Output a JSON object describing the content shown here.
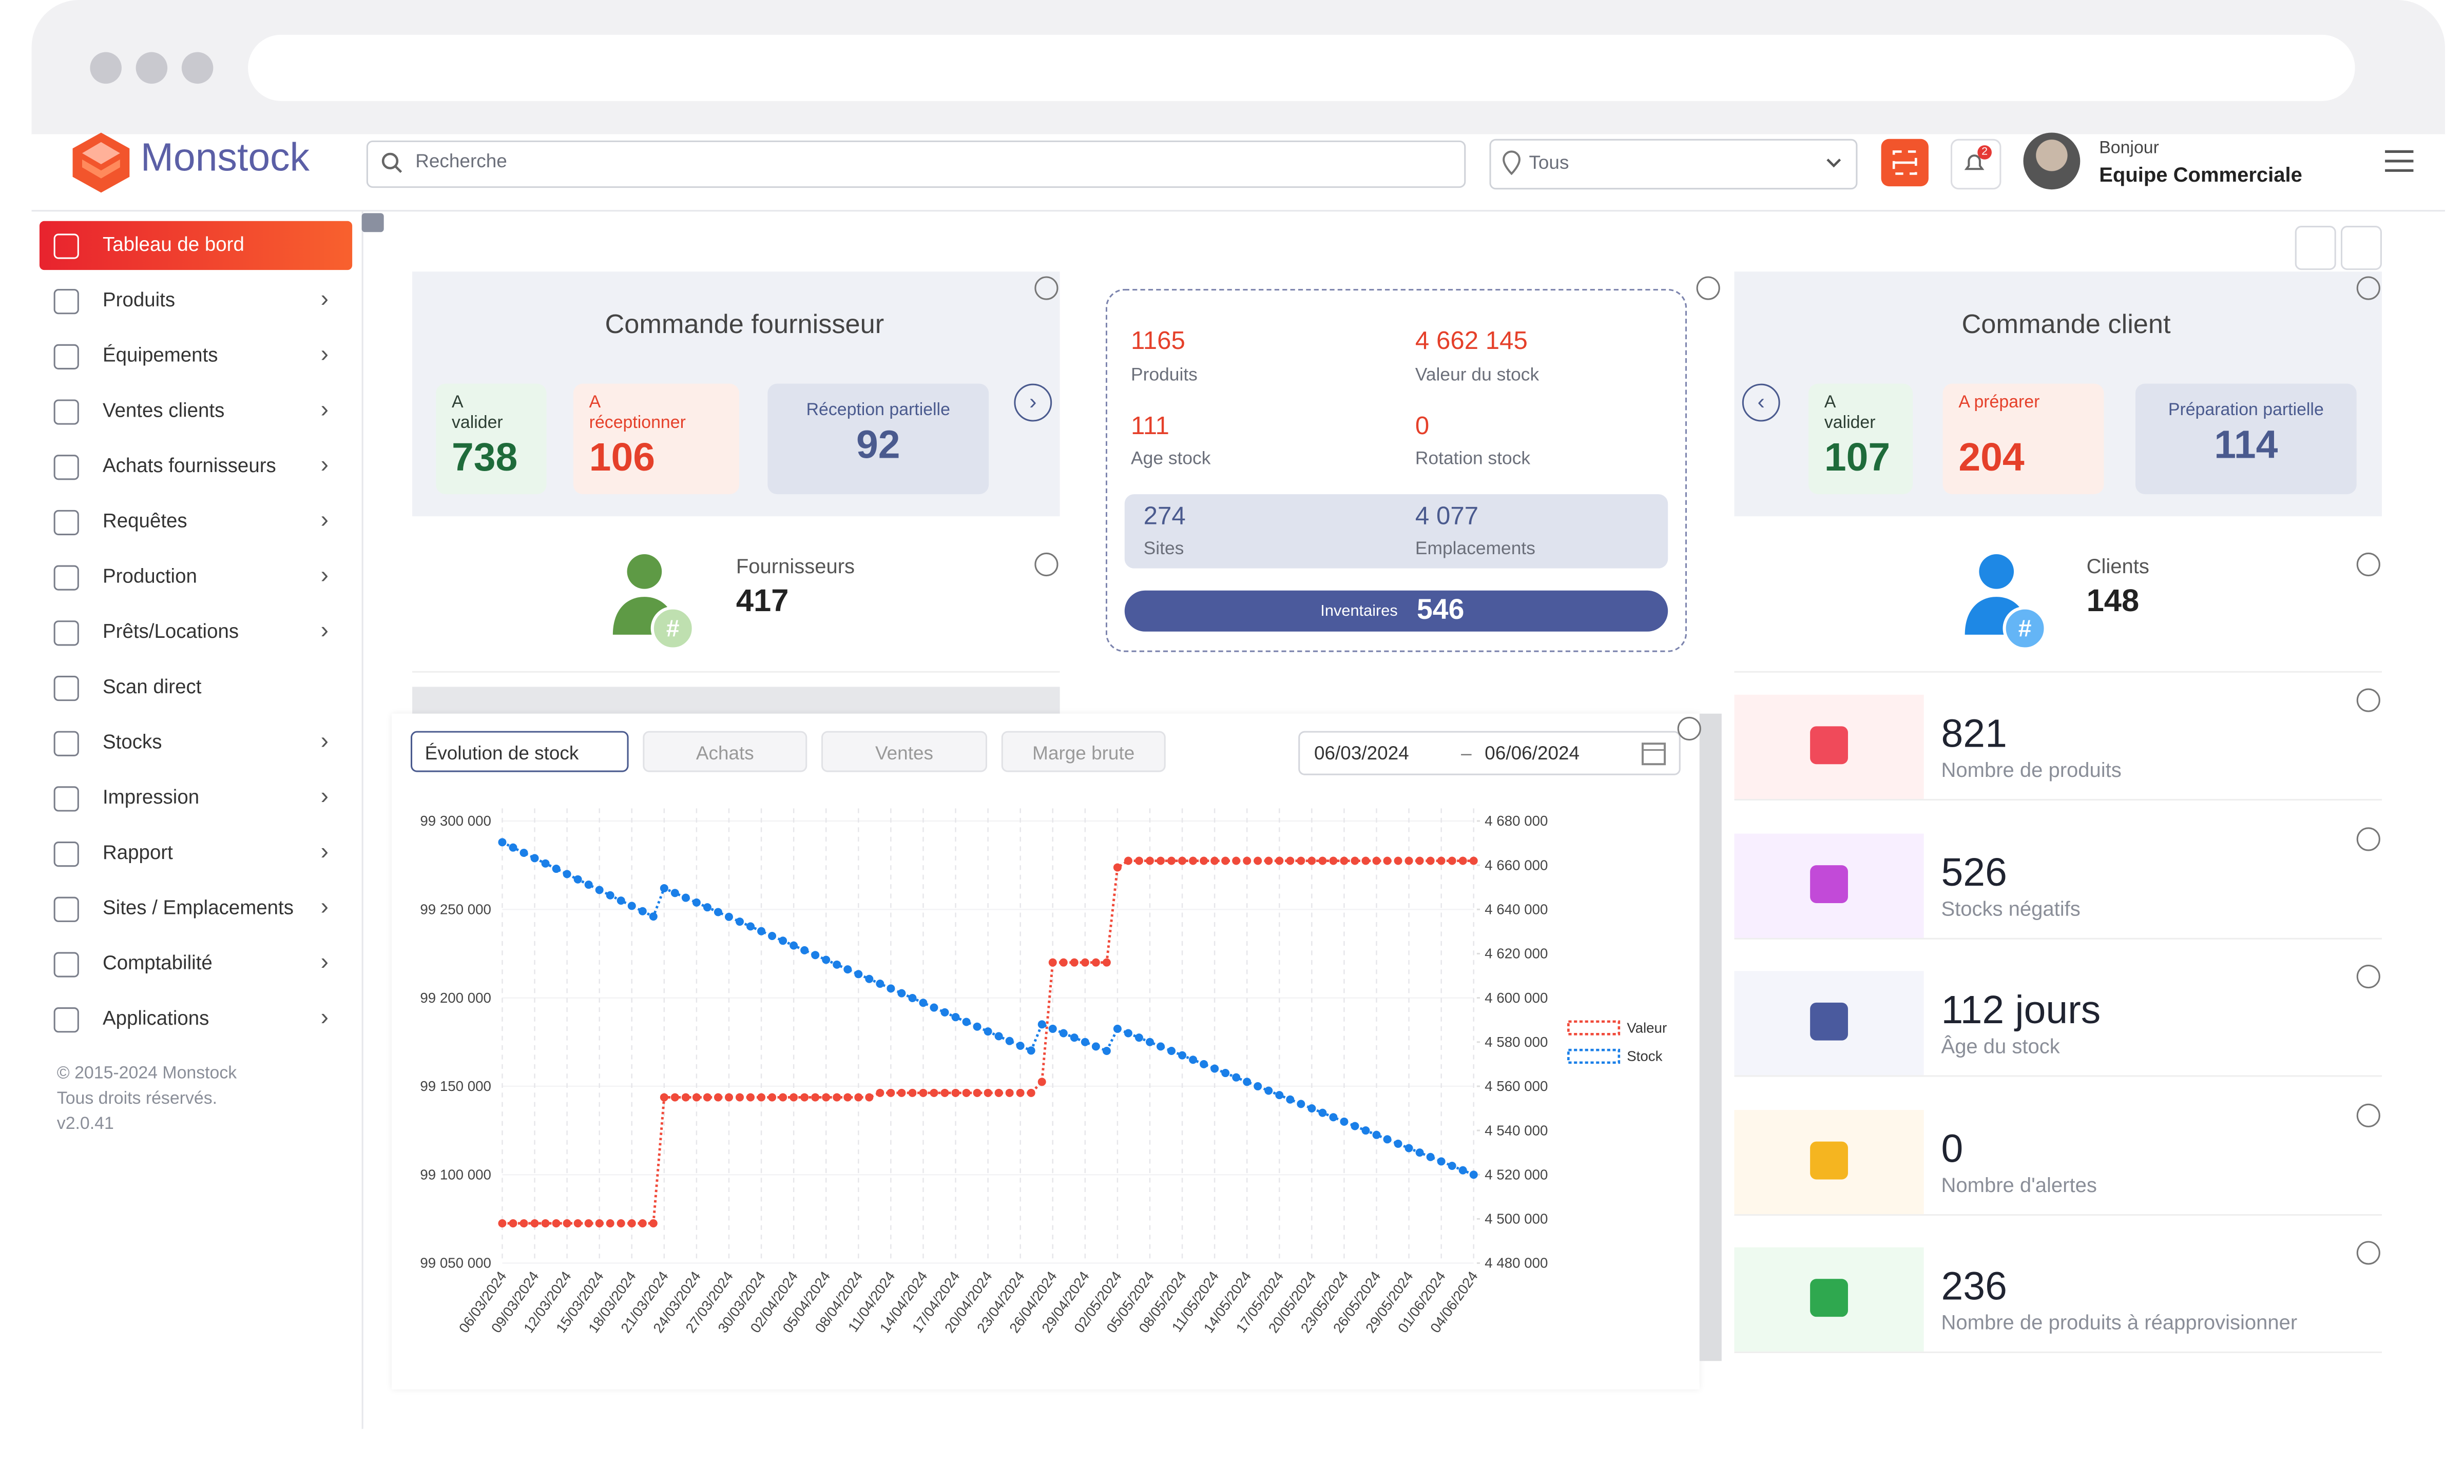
{
  "header": {
    "brand": "Monstock",
    "search_placeholder": "Recherche",
    "location": "Tous",
    "notifications": "2",
    "greeting": "Bonjour",
    "user": "Equipe Commerciale"
  },
  "sidebar": {
    "items": [
      "Tableau de bord",
      "Produits",
      "Équipements",
      "Ventes clients",
      "Achats fournisseurs",
      "Requêtes",
      "Production",
      "Prêts/Locations",
      "Scan direct",
      "Stocks",
      "Impression",
      "Rapport",
      "Sites / Emplacements",
      "Comptabilité",
      "Applications"
    ],
    "footer": [
      "© 2015-2024 Monstock",
      "Tous droits réservés.",
      "v2.0.41"
    ]
  },
  "supplier_orders": {
    "title": "Commande fournisseur",
    "tiles": [
      {
        "label": "A valider",
        "value": 738
      },
      {
        "label": "A réceptionner",
        "value": 106
      },
      {
        "label": "Réception partielle",
        "value": 92
      }
    ]
  },
  "suppliers": {
    "label": "Fournisseurs",
    "value": 417
  },
  "stock_summary": {
    "products": {
      "label": "Produits",
      "value": 1165
    },
    "stock_value": {
      "label": "Valeur du stock",
      "value": "4 662 145"
    },
    "stock_age": {
      "label": "Age stock",
      "value": 111
    },
    "rotation": {
      "label": "Rotation stock",
      "value": 0
    },
    "sites": {
      "label": "Sites",
      "value": 274
    },
    "locations": {
      "label": "Emplacements",
      "value": "4 077"
    },
    "inventories": {
      "label": "Inventaires",
      "value": 546
    }
  },
  "client_orders": {
    "title": "Commande client",
    "tiles": [
      {
        "label": "A valider",
        "value": 107
      },
      {
        "label": "A préparer",
        "value": 204
      },
      {
        "label": "Préparation partielle",
        "value": 114
      }
    ]
  },
  "clients": {
    "label": "Clients",
    "value": 148
  },
  "kpis": [
    {
      "value": 821,
      "label": "Nombre de produits"
    },
    {
      "value": 526,
      "label": "Stocks négatifs"
    },
    {
      "value": "112 jours",
      "label": "Âge du stock"
    },
    {
      "value": 0,
      "label": "Nombre d'alertes"
    },
    {
      "value": 236,
      "label": "Nombre de produits à réapprovisionner"
    }
  ],
  "chart_panel": {
    "tabs": [
      "Évolution de stock",
      "Achats",
      "Ventes",
      "Marge brute"
    ],
    "date_from": "06/03/2024",
    "date_to": "06/06/2024"
  },
  "chart_data": {
    "type": "line",
    "categories": [
      "06/03/2024",
      null,
      null,
      "09/03/2024",
      null,
      null,
      "12/03/2024",
      null,
      null,
      "15/03/2024",
      null,
      null,
      "18/03/2024",
      null,
      null,
      "21/03/2024",
      null,
      null,
      "24/03/2024",
      null,
      null,
      "27/03/2024",
      null,
      null,
      "30/03/2024",
      null,
      null,
      "02/04/2024",
      null,
      null,
      "05/04/2024",
      null,
      null,
      "08/04/2024",
      null,
      null,
      "11/04/2024",
      null,
      null,
      "14/04/2024",
      null,
      null,
      "17/04/2024",
      null,
      null,
      "20/04/2024",
      null,
      null,
      "23/04/2024",
      null,
      null,
      "26/04/2024",
      null,
      null,
      "29/04/2024",
      null,
      null,
      "02/05/2024",
      null,
      null,
      "05/05/2024",
      null,
      null,
      "08/05/2024",
      null,
      null,
      "11/05/2024",
      null,
      null,
      "14/05/2024",
      null,
      null,
      "17/05/2024",
      null,
      null,
      "20/05/2024",
      null,
      null,
      "23/05/2024",
      null,
      null,
      "26/05/2024",
      null,
      null,
      "29/05/2024",
      null,
      null,
      "01/06/2024",
      null,
      null,
      "04/06/2024"
    ],
    "series": [
      {
        "name": "Valeur",
        "color": "#f04a3a",
        "axis": "y2",
        "values": [
          4498000,
          4498000,
          4498000,
          4498000,
          4498000,
          4498000,
          4498000,
          4498000,
          4498000,
          4498000,
          4498000,
          4498000,
          4498000,
          4498000,
          4498000,
          4555000,
          4555000,
          4555000,
          4555000,
          4555000,
          4555000,
          4555000,
          4555000,
          4555000,
          4555000,
          4555000,
          4555000,
          4555000,
          4555000,
          4555000,
          4555000,
          4555000,
          4555000,
          4555000,
          4555000,
          4557000,
          4557000,
          4557000,
          4557000,
          4557000,
          4557000,
          4557000,
          4557000,
          4557000,
          4557000,
          4557000,
          4557000,
          4557000,
          4557000,
          4557000,
          4562000,
          4616000,
          4616000,
          4616000,
          4616000,
          4616000,
          4616000,
          4659000,
          4662000,
          4662000,
          4662000,
          4662000,
          4662000,
          4662000,
          4662000,
          4662000,
          4662000,
          4662000,
          4662000,
          4662000,
          4662000,
          4662000,
          4662000,
          4662000,
          4662000,
          4662000,
          4662000,
          4662000,
          4662000,
          4662000,
          4662000,
          4662000,
          4662000,
          4662000,
          4662000,
          4662000,
          4662000,
          4662000,
          4662000,
          4662000,
          4662000
        ]
      },
      {
        "name": "Stock",
        "color": "#1a7fe8",
        "values": [
          99288000,
          99285000,
          99282000,
          99279000,
          99276000,
          99273000,
          99270000,
          99267000,
          99264000,
          99261000,
          99258000,
          99255000,
          99252000,
          99249000,
          99246000,
          99262000,
          99259300,
          99256600,
          99253900,
          99251200,
          99248500,
          99245800,
          99243100,
          99240400,
          99237700,
          99235000,
          99232300,
          99229600,
          99226900,
          99224200,
          99221500,
          99218800,
          99216100,
          99213400,
          99210700,
          99208000,
          99205300,
          99202600,
          99199900,
          99197200,
          99194500,
          99191800,
          99189100,
          99186400,
          99183700,
          99181000,
          99178300,
          99175600,
          99172900,
          99170200,
          99185000,
          99182500,
          99180000,
          99177500,
          99175000,
          99172500,
          99170000,
          99182500,
          99180000,
          99177500,
          99175000,
          99172500,
          99170000,
          99167500,
          99165000,
          99162500,
          99160000,
          99157500,
          99155000,
          99152500,
          99150000,
          99147500,
          99145000,
          99142500,
          99140000,
          99137500,
          99135000,
          99132500,
          99130000,
          99127500,
          99125000,
          99122500,
          99120000,
          99117500,
          99115000,
          99112500,
          99110000,
          99107500,
          99105000,
          99102500,
          99100000
        ]
      }
    ],
    "ylim": [
      99050000,
      99300000
    ],
    "yticks": [
      {
        "value": 99050000,
        "label": "99 050 000"
      },
      {
        "value": 99100000,
        "label": "99 100 000"
      },
      {
        "value": 99150000,
        "label": "99 150 000"
      },
      {
        "value": 99200000,
        "label": "99 200 000"
      },
      {
        "value": 99250000,
        "label": "99 250 000"
      },
      {
        "value": 99300000,
        "label": "99 300 000"
      }
    ],
    "y2lim": [
      4480000,
      4680000
    ],
    "y2ticks": [
      {
        "value": 4480000,
        "label": "4 480 000"
      },
      {
        "value": 4500000,
        "label": "4 500 000"
      },
      {
        "value": 4520000,
        "label": "4 520 000"
      },
      {
        "value": 4540000,
        "label": "4 540 000"
      },
      {
        "value": 4560000,
        "label": "4 560 000"
      },
      {
        "value": 4580000,
        "label": "4 580 000"
      },
      {
        "value": 4600000,
        "label": "4 600 000"
      },
      {
        "value": 4620000,
        "label": "4 620 000"
      },
      {
        "value": 4640000,
        "label": "4 640 000"
      },
      {
        "value": 4660000,
        "label": "4 660 000"
      },
      {
        "value": 4680000,
        "label": "4 680 000"
      }
    ],
    "grid": true,
    "legend": "right"
  }
}
